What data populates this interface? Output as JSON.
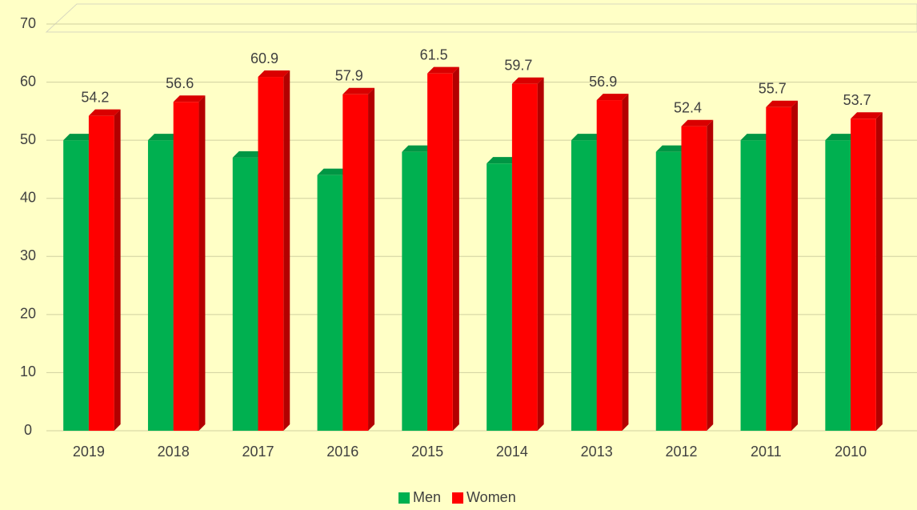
{
  "chart_data": {
    "type": "bar",
    "categories": [
      "2019",
      "2018",
      "2017",
      "2016",
      "2015",
      "2014",
      "2013",
      "2012",
      "2011",
      "2010"
    ],
    "series": [
      {
        "name": "Men",
        "color": "#00b050",
        "values": [
          50,
          50,
          47,
          44,
          48,
          46,
          50,
          48,
          50,
          50
        ]
      },
      {
        "name": "Women",
        "color": "#ff0000",
        "values": [
          54.2,
          56.6,
          60.9,
          57.9,
          61.5,
          59.7,
          56.9,
          52.4,
          55.7,
          53.7
        ]
      }
    ],
    "ylim": [
      0,
      70
    ],
    "yticks": [
      0,
      10,
      20,
      30,
      40,
      50,
      60,
      70
    ],
    "grid": true,
    "legend": "bottom"
  }
}
